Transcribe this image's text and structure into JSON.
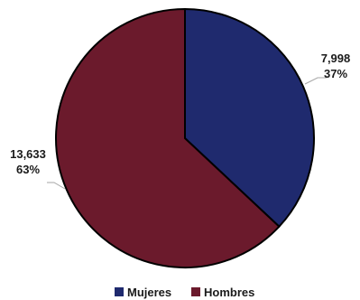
{
  "chart_data": {
    "type": "pie",
    "categories": [
      "Mujeres",
      "Hombres"
    ],
    "values": [
      7998,
      13633
    ],
    "value_labels": [
      "7,998",
      "13,633"
    ],
    "percent_labels": [
      "37%",
      "63%"
    ],
    "colors": [
      "#1f2a6e",
      "#6b1a2c"
    ],
    "start_angle_deg": 0,
    "direction": "clockwise",
    "legend": "bottom"
  }
}
